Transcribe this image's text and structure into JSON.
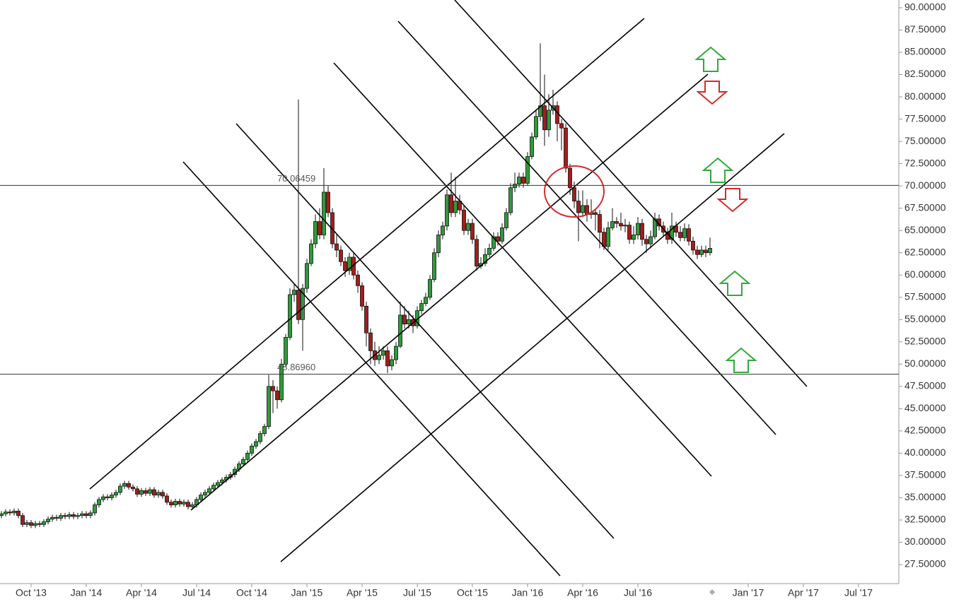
{
  "chart_data": {
    "type": "candlestick",
    "categories": [
      null,
      null,
      null,
      null,
      null,
      null,
      null,
      "Oct '13",
      null,
      null,
      null,
      null,
      null,
      null,
      null,
      null,
      null,
      null,
      null,
      null,
      "Jan '14",
      null,
      null,
      null,
      null,
      null,
      null,
      null,
      null,
      null,
      null,
      null,
      null,
      "Apr '14",
      null,
      null,
      null,
      null,
      null,
      null,
      null,
      null,
      null,
      null,
      null,
      null,
      "Jul '14",
      null,
      null,
      null,
      null,
      null,
      null,
      null,
      null,
      null,
      null,
      null,
      null,
      "Oct '14",
      null,
      null,
      null,
      null,
      null,
      null,
      null,
      null,
      null,
      null,
      null,
      null,
      "Jan '15",
      null,
      null,
      null,
      null,
      null,
      null,
      null,
      null,
      null,
      null,
      null,
      null,
      "Apr '15",
      null,
      null,
      null,
      null,
      null,
      null,
      null,
      null,
      null,
      null,
      null,
      null,
      "Jul '15",
      null,
      null,
      null,
      null,
      null,
      null,
      null,
      null,
      null,
      null,
      null,
      null,
      "Oct '15",
      null,
      null,
      null,
      null,
      null,
      null,
      null,
      null,
      null,
      null,
      null,
      null,
      "Jan '16",
      null,
      null,
      null,
      null,
      null,
      null,
      null,
      null,
      null,
      null,
      null,
      null,
      "Apr '16",
      null,
      null,
      null,
      null,
      null,
      null,
      null,
      null,
      null,
      null,
      null,
      null,
      "Jul '16",
      null,
      null,
      null,
      null,
      null,
      null,
      null,
      null,
      null,
      null,
      null,
      null,
      null,
      null,
      null,
      null,
      null,
      null,
      null,
      null,
      null,
      null,
      null,
      null,
      null,
      "Jan '17",
      null,
      null,
      null,
      null,
      null,
      null,
      null,
      null,
      null,
      null,
      null,
      null,
      "Apr '17",
      null,
      null,
      null,
      null,
      null,
      null,
      null,
      null,
      null,
      null,
      null,
      null,
      "Jul '17",
      null,
      null,
      null,
      null,
      null,
      null,
      null,
      null,
      null
    ],
    "open": [
      33.0,
      33.2,
      33.4,
      33.3,
      33.5,
      33.0,
      32.0,
      32.2,
      31.9,
      32.1,
      32.0,
      32.3,
      32.6,
      32.8,
      32.7,
      33.0,
      32.9,
      33.1,
      32.9,
      33.0,
      33.2,
      33.0,
      33.3,
      34.2,
      34.8,
      35.1,
      35.0,
      35.3,
      35.6,
      36.3,
      36.6,
      36.2,
      36.0,
      35.4,
      35.8,
      35.5,
      35.9,
      35.3,
      35.6,
      35.2,
      34.5,
      34.2,
      34.6,
      34.3,
      34.5,
      34.0,
      34.2,
      34.8,
      35.3,
      35.6,
      36.0,
      36.4,
      36.7,
      37.0,
      37.3,
      37.6,
      38.2,
      38.8,
      39.3,
      40.0,
      40.8,
      41.3,
      42.2,
      43.0,
      47.5,
      47.0,
      46.0,
      50.0,
      53.0,
      57.8,
      58.3,
      55.0,
      58.5,
      61.3,
      63.5,
      66.0,
      64.5,
      69.3,
      67.0,
      63.5,
      62.8,
      61.5,
      60.5,
      62.0,
      60.0,
      58.8,
      56.5,
      53.5,
      51.5,
      50.5,
      51.0,
      51.5,
      49.8,
      50.5,
      52.0,
      55.5,
      54.5,
      55.0,
      54.3,
      56.0,
      56.8,
      57.5,
      59.5,
      62.5,
      64.5,
      65.5,
      69.0,
      67.0,
      68.3,
      67.3,
      65.0,
      65.8,
      64.0,
      61.0,
      61.3,
      62.3,
      63.0,
      64.3,
      63.8,
      65.3,
      67.0,
      69.8,
      70.2,
      71.0,
      70.3,
      73.3,
      75.5,
      77.8,
      79.0,
      76.3,
      78.5,
      79.0,
      77.0,
      76.5,
      72.0,
      69.8,
      68.3,
      67.0,
      67.8,
      66.8,
      67.0,
      66.8,
      64.8,
      63.2,
      65.3,
      66.0,
      65.8,
      65.5,
      65.6,
      64.0,
      64.5,
      65.8,
      64.0,
      63.5,
      64.3,
      66.3,
      65.5,
      64.8,
      64.0,
      65.5,
      64.8,
      64.2,
      65.2,
      63.8,
      62.8,
      62.3,
      62.8,
      62.5,
      null,
      null,
      null,
      null,
      null,
      null,
      null,
      null,
      null,
      null,
      null,
      null,
      null,
      null,
      null,
      null,
      null,
      null,
      null,
      null,
      null,
      null,
      null,
      null,
      null,
      null,
      null,
      null,
      null,
      null,
      null,
      null,
      null,
      null,
      null,
      null,
      null,
      null,
      null,
      null,
      null,
      null,
      null,
      null
    ],
    "high": [
      33.5,
      33.7,
      33.7,
      33.8,
      33.8,
      33.3,
      32.5,
      32.5,
      32.4,
      32.4,
      32.6,
      32.9,
      33.1,
      33.1,
      33.3,
      33.3,
      33.4,
      33.4,
      33.3,
      33.5,
      33.5,
      33.6,
      34.5,
      35.1,
      35.4,
      35.4,
      35.6,
      35.9,
      36.6,
      36.9,
      36.9,
      36.5,
      36.3,
      36.1,
      36.1,
      36.2,
      36.2,
      35.9,
      35.9,
      35.5,
      34.8,
      34.9,
      34.9,
      34.8,
      34.8,
      34.5,
      35.1,
      35.6,
      35.9,
      36.3,
      36.7,
      37.0,
      37.3,
      37.6,
      37.9,
      38.5,
      39.1,
      39.6,
      40.3,
      41.1,
      41.6,
      42.5,
      43.3,
      48.8,
      48.2,
      47.5,
      50.6,
      53.4,
      58.5,
      59.0,
      79.7,
      59.0,
      61.8,
      64.0,
      66.8,
      67.5,
      72.0,
      70.0,
      67.5,
      64.5,
      63.3,
      62.0,
      62.5,
      62.5,
      60.5,
      59.2,
      57.0,
      54.0,
      52.5,
      52.0,
      52.0,
      52.0,
      51.0,
      52.5,
      57.0,
      56.5,
      56.0,
      55.5,
      56.5,
      57.2,
      58.0,
      60.0,
      63.0,
      65.0,
      66.0,
      69.6,
      71.5,
      71.0,
      69.0,
      67.8,
      66.3,
      66.3,
      64.5,
      62.0,
      63.0,
      63.5,
      64.8,
      64.8,
      65.8,
      67.5,
      70.3,
      71.5,
      71.5,
      71.5,
      73.8,
      76.0,
      78.5,
      86.0,
      82.5,
      80.3,
      80.8,
      79.5,
      77.5,
      77.0,
      72.5,
      70.5,
      69.5,
      69.5,
      68.5,
      68.5,
      67.5,
      67.3,
      65.3,
      66.0,
      67.5,
      66.5,
      67.0,
      66.3,
      66.0,
      65.5,
      66.5,
      66.3,
      64.5,
      65.0,
      67.0,
      66.8,
      66.0,
      65.3,
      67.0,
      66.0,
      65.5,
      65.8,
      65.7,
      64.3,
      63.3,
      63.3,
      63.3,
      64.2,
      null,
      null,
      null,
      null,
      null,
      null,
      null,
      null,
      null,
      null,
      null,
      null,
      null,
      null,
      null,
      null,
      null,
      null,
      null,
      null,
      null,
      null,
      null,
      null,
      null,
      null,
      null,
      null,
      null,
      null,
      null,
      null,
      null,
      null,
      null,
      null,
      null,
      null,
      null,
      null,
      null,
      null,
      null,
      null
    ],
    "low": [
      32.7,
      32.9,
      33.0,
      33.0,
      32.7,
      31.7,
      31.7,
      31.6,
      31.6,
      31.7,
      31.7,
      32.0,
      32.3,
      32.4,
      32.4,
      32.6,
      32.6,
      32.6,
      32.6,
      32.7,
      32.7,
      32.7,
      33.0,
      33.9,
      34.5,
      34.7,
      34.7,
      35.0,
      35.3,
      36.0,
      35.9,
      35.7,
      35.1,
      35.1,
      35.2,
      35.2,
      35.0,
      35.0,
      34.9,
      34.2,
      33.9,
      33.9,
      34.0,
      34.0,
      33.7,
      33.7,
      33.9,
      34.5,
      35.0,
      35.3,
      35.7,
      36.1,
      36.4,
      36.7,
      37.0,
      37.3,
      37.9,
      38.5,
      39.0,
      39.7,
      40.5,
      41.0,
      41.9,
      42.7,
      44.5,
      45.0,
      45.7,
      49.7,
      52.7,
      57.0,
      54.5,
      51.5,
      58.0,
      61.0,
      63.0,
      64.0,
      64.0,
      66.5,
      63.0,
      62.0,
      61.0,
      59.8,
      60.0,
      59.5,
      58.0,
      56.0,
      52.0,
      50.0,
      49.8,
      50.0,
      50.5,
      49.0,
      49.3,
      50.0,
      51.8,
      54.0,
      54.0,
      53.5,
      54.0,
      55.6,
      56.5,
      57.2,
      59.2,
      62.0,
      64.0,
      65.0,
      66.5,
      66.5,
      66.8,
      64.5,
      64.5,
      63.5,
      60.5,
      60.7,
      61.0,
      62.0,
      62.7,
      63.3,
      63.5,
      65.0,
      66.7,
      69.3,
      69.8,
      69.8,
      70.0,
      73.0,
      75.2,
      77.3,
      74.5,
      75.5,
      78.0,
      75.0,
      74.0,
      71.5,
      69.0,
      67.5,
      63.8,
      66.5,
      66.0,
      66.3,
      65.0,
      63.0,
      62.8,
      62.8,
      65.0,
      65.3,
      65.0,
      64.8,
      63.5,
      63.5,
      64.0,
      63.3,
      62.5,
      63.0,
      64.0,
      65.0,
      64.3,
      63.5,
      63.5,
      64.3,
      63.8,
      63.8,
      63.3,
      62.3,
      61.8,
      62.0,
      62.0,
      62.2,
      null,
      null,
      null,
      null,
      null,
      null,
      null,
      null,
      null,
      null,
      null,
      null,
      null,
      null,
      null,
      null,
      null,
      null,
      null,
      null,
      null,
      null,
      null,
      null,
      null,
      null,
      null,
      null,
      null,
      null,
      null,
      null,
      null,
      null,
      null,
      null,
      null,
      null,
      null,
      null,
      null,
      null,
      null,
      null
    ],
    "close": [
      33.2,
      33.4,
      33.3,
      33.5,
      33.0,
      32.0,
      32.2,
      31.9,
      32.1,
      32.0,
      32.3,
      32.6,
      32.8,
      32.7,
      33.0,
      32.9,
      33.1,
      32.9,
      33.0,
      33.2,
      33.0,
      33.3,
      34.2,
      34.8,
      35.1,
      35.0,
      35.3,
      35.6,
      36.3,
      36.6,
      36.2,
      36.0,
      35.4,
      35.8,
      35.5,
      35.9,
      35.3,
      35.6,
      35.2,
      34.5,
      34.2,
      34.6,
      34.3,
      34.5,
      34.0,
      34.2,
      34.8,
      35.3,
      35.6,
      36.0,
      36.4,
      36.7,
      37.0,
      37.3,
      37.6,
      38.2,
      38.8,
      39.3,
      40.0,
      40.8,
      41.3,
      42.2,
      43.0,
      47.5,
      47.0,
      46.0,
      50.0,
      53.0,
      57.8,
      58.3,
      55.0,
      58.5,
      61.3,
      63.5,
      66.0,
      64.5,
      69.3,
      67.0,
      63.5,
      62.8,
      61.5,
      60.5,
      62.0,
      60.0,
      58.8,
      56.5,
      53.5,
      51.5,
      50.5,
      51.0,
      51.5,
      49.8,
      50.5,
      52.0,
      55.5,
      54.5,
      55.0,
      54.3,
      56.0,
      56.8,
      57.5,
      59.5,
      62.5,
      64.5,
      65.5,
      69.0,
      67.0,
      68.3,
      67.3,
      65.0,
      65.8,
      64.0,
      61.0,
      61.3,
      62.3,
      63.0,
      64.3,
      63.8,
      65.3,
      67.0,
      69.8,
      70.2,
      71.0,
      70.3,
      73.3,
      75.5,
      77.8,
      79.0,
      76.3,
      78.5,
      79.0,
      77.0,
      76.5,
      72.0,
      69.8,
      68.3,
      67.0,
      67.8,
      66.8,
      67.0,
      66.8,
      64.8,
      63.2,
      65.3,
      66.0,
      65.8,
      65.5,
      65.6,
      64.0,
      64.5,
      65.8,
      64.0,
      63.5,
      64.3,
      66.3,
      65.5,
      64.8,
      64.0,
      65.5,
      64.8,
      64.2,
      65.2,
      63.8,
      62.8,
      62.3,
      62.8,
      62.5,
      63.0,
      null,
      null,
      null,
      null,
      null,
      null,
      null,
      null,
      null,
      null,
      null,
      null,
      null,
      null,
      null,
      null,
      null,
      null,
      null,
      null,
      null,
      null,
      null,
      null,
      null,
      null,
      null,
      null,
      null,
      null,
      null,
      null,
      null,
      null,
      null,
      null,
      null,
      null,
      null,
      null,
      null,
      null,
      null,
      null
    ],
    "up_color": "#2f9a3a",
    "down_color": "#a51c1c",
    "ylim": [
      25.36,
      90.87
    ],
    "yticks": [
      {
        "value": 27.5,
        "label": "27.50000"
      },
      {
        "value": 30,
        "label": "30.00000"
      },
      {
        "value": 32.5,
        "label": "32.50000"
      },
      {
        "value": 35,
        "label": "35.00000"
      },
      {
        "value": 37.5,
        "label": "37.50000"
      },
      {
        "value": 40,
        "label": "40.00000"
      },
      {
        "value": 42.5,
        "label": "42.50000"
      },
      {
        "value": 45,
        "label": "45.00000"
      },
      {
        "value": 47.5,
        "label": "47.50000"
      },
      {
        "value": 50,
        "label": "50.00000"
      },
      {
        "value": 52.5,
        "label": "52.50000"
      },
      {
        "value": 55,
        "label": "55.00000"
      },
      {
        "value": 57.5,
        "label": "57.50000"
      },
      {
        "value": 60,
        "label": "60.00000"
      },
      {
        "value": 62.5,
        "label": "62.50000"
      },
      {
        "value": 65,
        "label": "65.00000"
      },
      {
        "value": 67.5,
        "label": "67.50000"
      },
      {
        "value": 70,
        "label": "70.00000"
      },
      {
        "value": 72.5,
        "label": "72.50000"
      },
      {
        "value": 75,
        "label": "75.00000"
      },
      {
        "value": 77.5,
        "label": "77.50000"
      },
      {
        "value": 80,
        "label": "80.00000"
      },
      {
        "value": 82.5,
        "label": "82.50000"
      },
      {
        "value": 85,
        "label": "85.00000"
      },
      {
        "value": 87.5,
        "label": "87.50000"
      },
      {
        "value": 90,
        "label": "90.00000"
      }
    ],
    "hlines": [
      70.06459,
      {
        "value": 48.8696,
        "label": "48.86960"
      }
    ],
    "grid": false
  }
}
